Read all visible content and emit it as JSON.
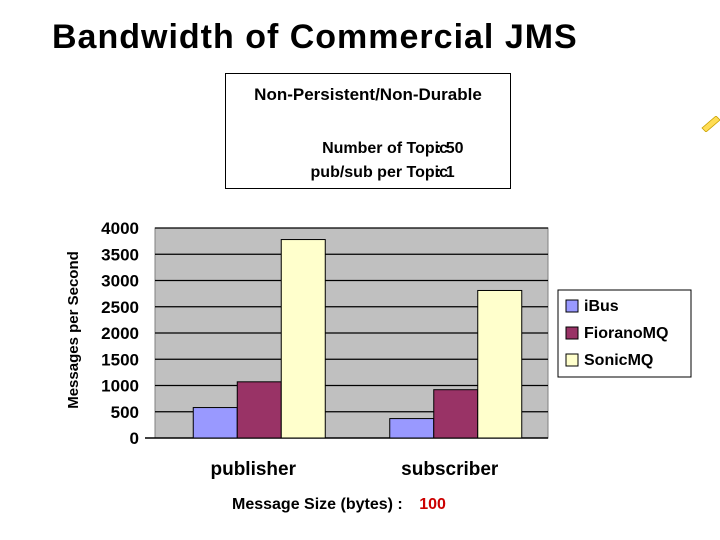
{
  "slide": {
    "title": "Bandwidth of Commercial JMS"
  },
  "info_box": {
    "heading": "Non-Persistent/Non-Durable",
    "rows": [
      {
        "label": "Number of Topic",
        "value": ": 50"
      },
      {
        "label": "pub/sub per Topic",
        "value": ": 1"
      }
    ]
  },
  "chart_data": {
    "type": "bar",
    "categories": [
      "publisher",
      "subscriber"
    ],
    "series": [
      {
        "name": "iBus",
        "values": [
          580,
          370
        ],
        "color": "#9999ff"
      },
      {
        "name": "FioranoMQ",
        "values": [
          1070,
          920
        ],
        "color": "#993366"
      },
      {
        "name": "SonicMQ",
        "values": [
          3780,
          2810
        ],
        "color": "#ffffcc"
      }
    ],
    "ylabel": "Messages per Second",
    "ylim": [
      0,
      4000
    ],
    "yticks": [
      0,
      500,
      1000,
      1500,
      2000,
      2500,
      3000,
      3500,
      4000
    ],
    "xlabel": "Message Size (bytes) :",
    "xlabel_value": "100",
    "xlabel_value_color": "#cc0000",
    "plot_background": "#c0c0c0",
    "grid": true,
    "legend_position": "right"
  }
}
